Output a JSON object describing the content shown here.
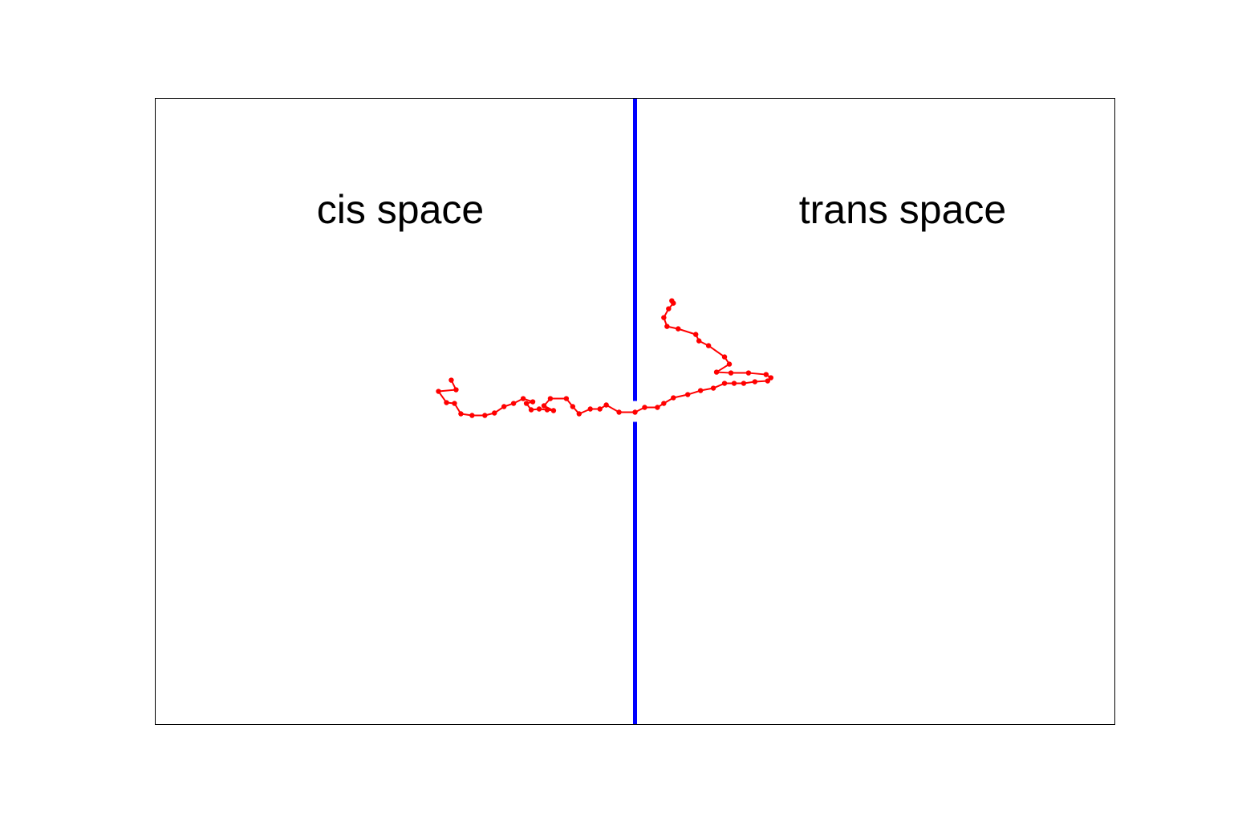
{
  "labels": {
    "cis": "cis space",
    "trans": "trans space"
  },
  "colors": {
    "membrane": "#0000ff",
    "chain": "#ff0000",
    "frame": "#000000",
    "background": "#ffffff"
  },
  "chart_data": {
    "type": "scatter",
    "title": "",
    "xlabel": "",
    "ylabel": "",
    "grid": false,
    "membrane_x": 0,
    "pore_gap_y": [
      -1.3,
      1.3
    ],
    "xlim": [
      -30,
      30
    ],
    "ylim": [
      -39,
      39
    ],
    "series": [
      {
        "values": [
          [
            -11.5,
            3.9
          ],
          [
            -11.2,
            2.7
          ],
          [
            -12.3,
            2.5
          ],
          [
            -11.8,
            1.1
          ],
          [
            -11.3,
            1.0
          ],
          [
            -10.9,
            -0.3
          ],
          [
            -10.2,
            -0.5
          ],
          [
            -9.4,
            -0.5
          ],
          [
            -8.8,
            -0.2
          ],
          [
            -8.2,
            0.6
          ],
          [
            -7.6,
            1.0
          ],
          [
            -7.0,
            1.6
          ],
          [
            -6.4,
            1.2
          ],
          [
            -6.8,
            1.0
          ],
          [
            -6.5,
            0.2
          ],
          [
            -6.0,
            0.3
          ],
          [
            -5.5,
            0.2
          ],
          [
            -5.1,
            0.1
          ],
          [
            -5.7,
            0.7
          ],
          [
            -5.3,
            1.6
          ],
          [
            -4.3,
            1.6
          ],
          [
            -3.9,
            0.6
          ],
          [
            -3.5,
            -0.3
          ],
          [
            -2.8,
            0.3
          ],
          [
            -2.2,
            0.3
          ],
          [
            -1.8,
            0.8
          ],
          [
            -1.0,
            -0.1
          ],
          [
            0.0,
            -0.1
          ],
          [
            0.6,
            0.5
          ],
          [
            1.4,
            0.5
          ],
          [
            1.8,
            1.0
          ],
          [
            2.4,
            1.7
          ],
          [
            3.3,
            2.1
          ],
          [
            4.1,
            2.6
          ],
          [
            4.9,
            2.9
          ],
          [
            5.6,
            3.5
          ],
          [
            6.2,
            3.5
          ],
          [
            6.8,
            3.5
          ],
          [
            7.5,
            3.7
          ],
          [
            8.3,
            3.8
          ],
          [
            8.5,
            4.2
          ],
          [
            8.2,
            4.6
          ],
          [
            7.1,
            4.8
          ],
          [
            6.0,
            4.8
          ],
          [
            5.1,
            4.9
          ],
          [
            5.9,
            5.9
          ],
          [
            5.6,
            6.8
          ],
          [
            4.6,
            8.2
          ],
          [
            4.0,
            8.8
          ],
          [
            3.8,
            9.6
          ],
          [
            2.7,
            10.3
          ],
          [
            2.0,
            10.6
          ],
          [
            1.8,
            11.7
          ],
          [
            2.1,
            12.8
          ],
          [
            2.4,
            13.5
          ],
          [
            2.3,
            13.8
          ]
        ]
      }
    ]
  }
}
